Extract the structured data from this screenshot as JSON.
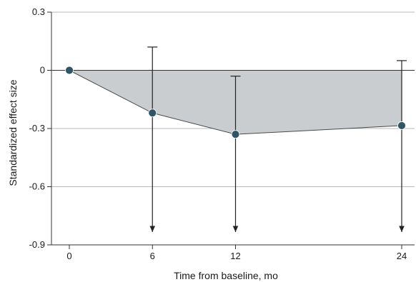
{
  "chart_data": {
    "type": "line",
    "title": "",
    "xlabel": "Time from baseline, mo",
    "ylabel": "Standardized effect size",
    "x": [
      0,
      6,
      12,
      24
    ],
    "series": [
      {
        "values": [
          0,
          -0.22,
          -0.33,
          -0.285
        ],
        "ci_upper": [
          null,
          0.12,
          -0.03,
          0.05
        ],
        "ci_lower_extends_below_axis": [
          false,
          true,
          true,
          true
        ]
      }
    ],
    "xticks": [
      "0",
      "6",
      "12",
      "24"
    ],
    "yticks": [
      "0.3",
      "0",
      "-0.3",
      "-0.6",
      "-0.9"
    ],
    "xlim": [
      0,
      24
    ],
    "ylim": [
      -0.9,
      0.3
    ],
    "grid": "horizontal",
    "reference_line": 0,
    "shaded_area": "between zero line and effect size curve",
    "colors": {
      "point": "#2f5566",
      "fill": "#c9cdd0",
      "line": "#4a4a4a",
      "grid": "#b9b9b9",
      "axis": "#333333"
    }
  }
}
